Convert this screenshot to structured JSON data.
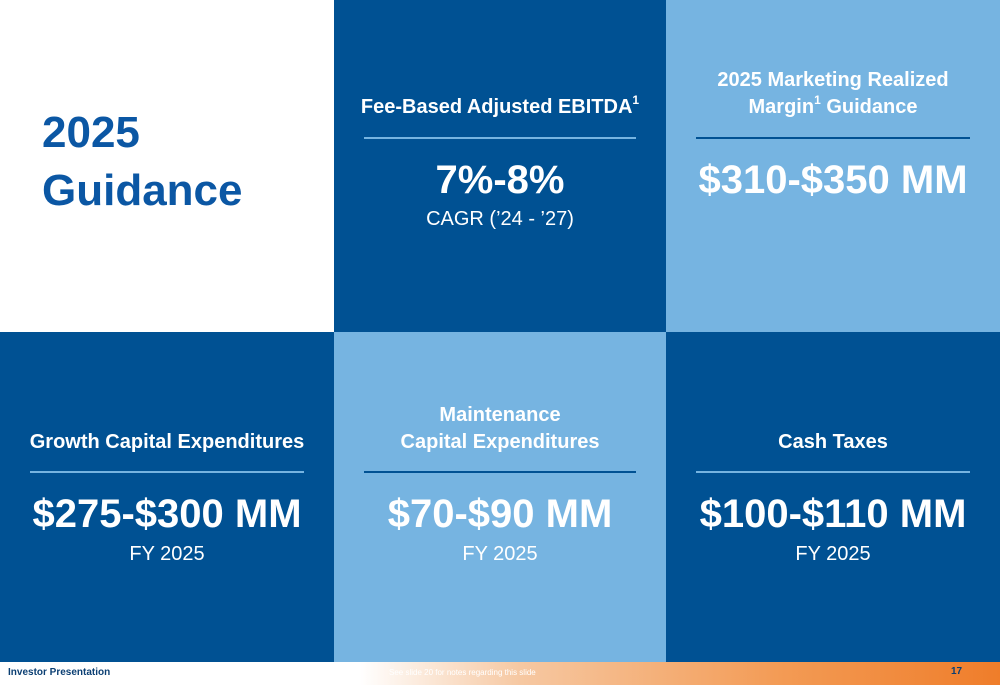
{
  "title": {
    "line1": "2025",
    "line2": "Guidance"
  },
  "cards": {
    "fee_ebitda": {
      "heading": "Fee-Based Adjusted EBITDA",
      "footnote": "1",
      "value": "7%-8%",
      "sub": "CAGR (’24 - ’27)"
    },
    "marketing": {
      "heading_line1": "2025 Marketing Realized",
      "heading_line2_a": "Margin",
      "footnote": "1",
      "heading_line2_b": " Guidance",
      "value": "$310-$350 MM"
    },
    "growth_capex": {
      "heading": "Growth Capital Expenditures",
      "value": "$275-$300 MM",
      "sub": "FY 2025"
    },
    "maint_capex": {
      "heading_line1": "Maintenance",
      "heading_line2": "Capital Expenditures",
      "value": "$70-$90 MM",
      "sub": "FY 2025"
    },
    "cash_taxes": {
      "heading": "Cash Taxes",
      "value": "$100-$110 MM",
      "sub": "FY 2025"
    }
  },
  "footer": {
    "left": "Investor Presentation",
    "note": "See slide 20 for notes regarding this slide",
    "page": "17"
  },
  "colors": {
    "dark_blue": "#005193",
    "light_blue": "#76b4e1",
    "title_blue": "#0b57a4",
    "accent_orange": "#ef7d2a"
  }
}
